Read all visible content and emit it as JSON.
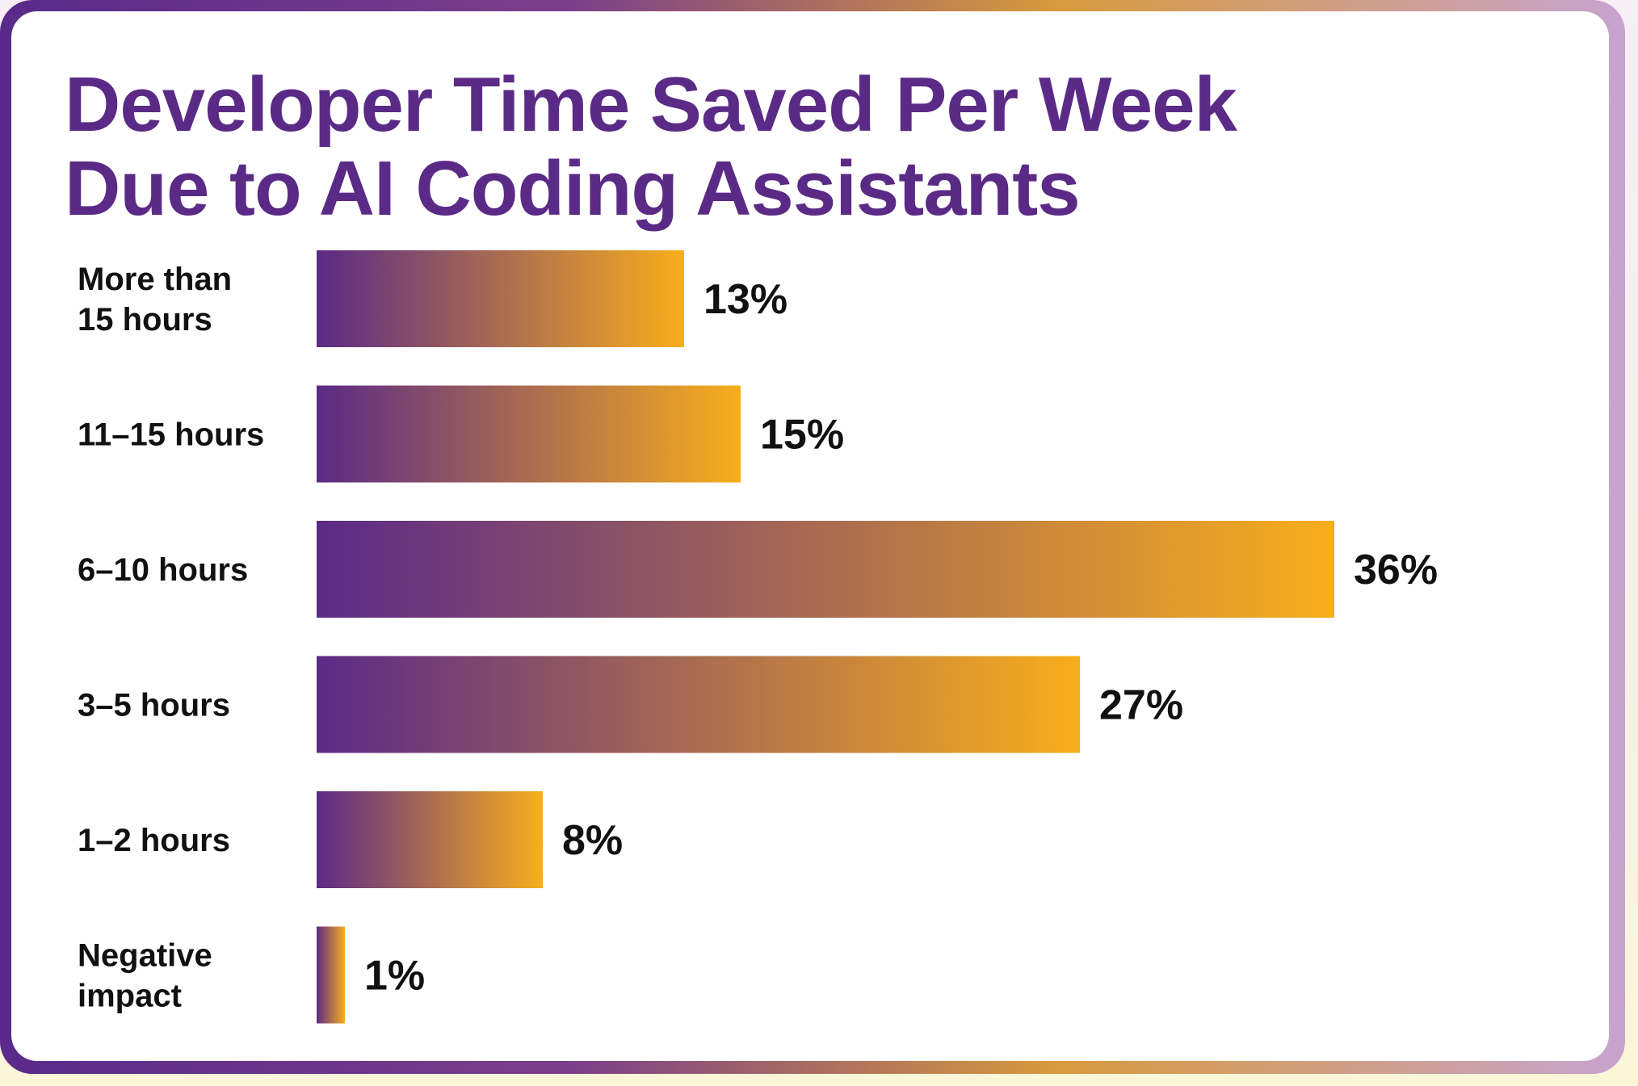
{
  "colors": {
    "title": "#5b2a86",
    "bar_start": "#5b2a86",
    "bar_end": "#f8ae1c",
    "text": "#111111",
    "card_background": "#ffffff"
  },
  "chart_data": {
    "type": "bar",
    "orientation": "horizontal",
    "title_lines": [
      "Developer Time Saved Per Week",
      "Due to AI Coding Assistants"
    ],
    "categories": [
      [
        "More than",
        "15 hours"
      ],
      [
        "11–15 hours"
      ],
      [
        "6–10 hours"
      ],
      [
        "3–5 hours"
      ],
      [
        "1–2 hours"
      ],
      [
        "Negative",
        "impact"
      ]
    ],
    "values": [
      13,
      15,
      36,
      27,
      8,
      1
    ],
    "value_labels": [
      "13%",
      "15%",
      "36%",
      "27%",
      "8%",
      "1%"
    ],
    "unit": "%",
    "xlabel": "",
    "ylabel": "",
    "grid": false,
    "legend": "none"
  }
}
